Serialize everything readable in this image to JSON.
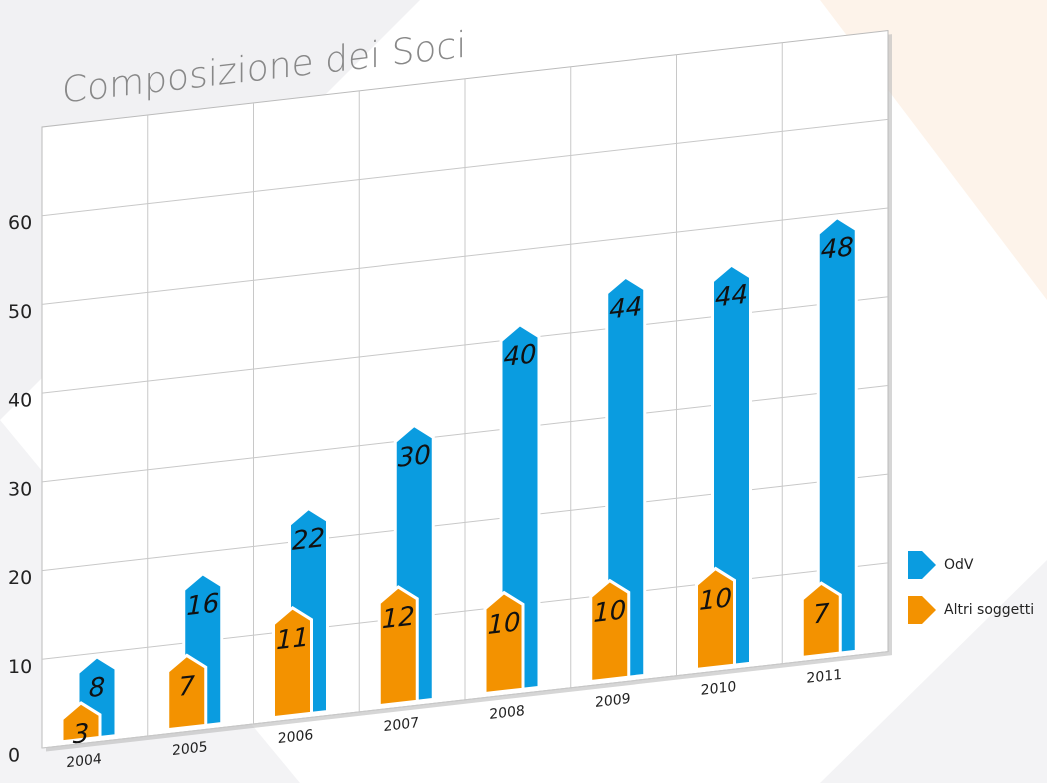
{
  "chart_data": {
    "type": "bar",
    "title": "Composizione dei Soci",
    "categories": [
      "2004",
      "2005",
      "2006",
      "2007",
      "2008",
      "2009",
      "2010",
      "2011"
    ],
    "series": [
      {
        "name": "OdV",
        "color": "#0a9ce0",
        "values": [
          8,
          16,
          22,
          30,
          40,
          44,
          44,
          48
        ]
      },
      {
        "name": "Altri soggetti",
        "color": "#f39200",
        "values": [
          3,
          7,
          11,
          12,
          10,
          10,
          10,
          7
        ]
      }
    ],
    "ylim": [
      0,
      70
    ],
    "yticks": [
      0,
      10,
      20,
      30,
      40,
      50,
      60
    ],
    "grid": true,
    "legend": "right"
  }
}
